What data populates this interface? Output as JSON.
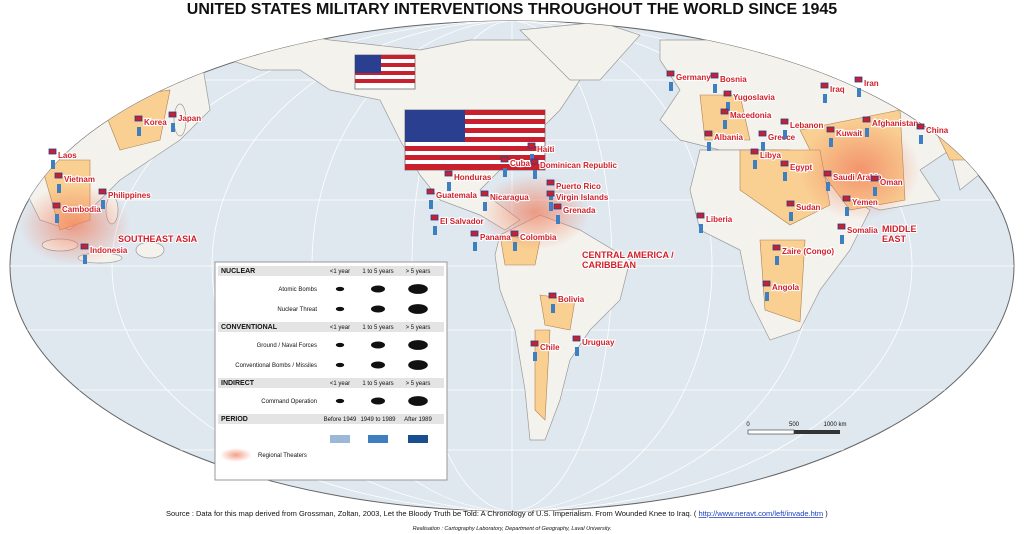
{
  "title": "UNITED STATES MILITARY INTERVENTIONS THROUGHOUT THE WORLD SINCE 1945",
  "countries": [
    "Korea",
    "Japan",
    "Laos",
    "Vietnam",
    "Cambodia",
    "Philippines",
    "Indonesia",
    "Haiti",
    "Cuba",
    "Dominican Republic",
    "Honduras",
    "Puerto Rico",
    "Virgin Islands",
    "Guatemala",
    "Nicaragua",
    "Grenada",
    "El Salvador",
    "Panama",
    "Colombia",
    "Bolivia",
    "Chile",
    "Uruguay",
    "Germany",
    "Bosnia",
    "Yugoslavia",
    "Macedonia",
    "Albania",
    "Greece",
    "Lebanon",
    "Libya",
    "Egypt",
    "Iraq",
    "Iran",
    "Kuwait",
    "Afghanistan",
    "China",
    "Saudi Arabia",
    "Oman",
    "Yemen",
    "Sudan",
    "Somalia",
    "Liberia",
    "Zaire (Congo)",
    "Angola"
  ],
  "regions": [
    [
      "SOUTHEAST ASIA"
    ],
    [
      "CENTRAL AMERICA /",
      "CARIBBEAN"
    ],
    [
      "MIDDLE",
      "EAST"
    ]
  ],
  "legend": {
    "sections": [
      {
        "title": "NUCLEAR",
        "columns": [
          "<1 year",
          "1 to 5 years",
          "> 5 years"
        ],
        "rows": [
          "Atomic Bombs",
          "Nuclear Threat"
        ]
      },
      {
        "title": "CONVENTIONAL",
        "columns": [
          "<1 year",
          "1 to 5 years",
          "> 5 years"
        ],
        "rows": [
          "Ground / Naval Forces",
          "Conventional Bombs / Missiles"
        ]
      },
      {
        "title": "INDIRECT",
        "columns": [
          "<1 year",
          "1 to 5 years",
          "> 5 years"
        ],
        "rows": [
          "Command Operation"
        ]
      },
      {
        "title": "PERIOD",
        "columns": [
          "Before 1949",
          "1949 to 1989",
          "After 1989"
        ],
        "rows": []
      }
    ],
    "regional": "Regional Theaters"
  },
  "scale": [
    "0",
    "500",
    "1000 km"
  ],
  "source": "Source : Data for this map derived from Grossman, Zoltan, 2003, Let the Bloody Truth be Told: A Chronology of U.S. Imperialism. From Wounded Knee to Iraq. (",
  "link": "http://www.neravt.com/left/invade.htm",
  "source_end": ")",
  "credit": "Realisation : Cartography Laboratory, Department of Geography, Laval University."
}
